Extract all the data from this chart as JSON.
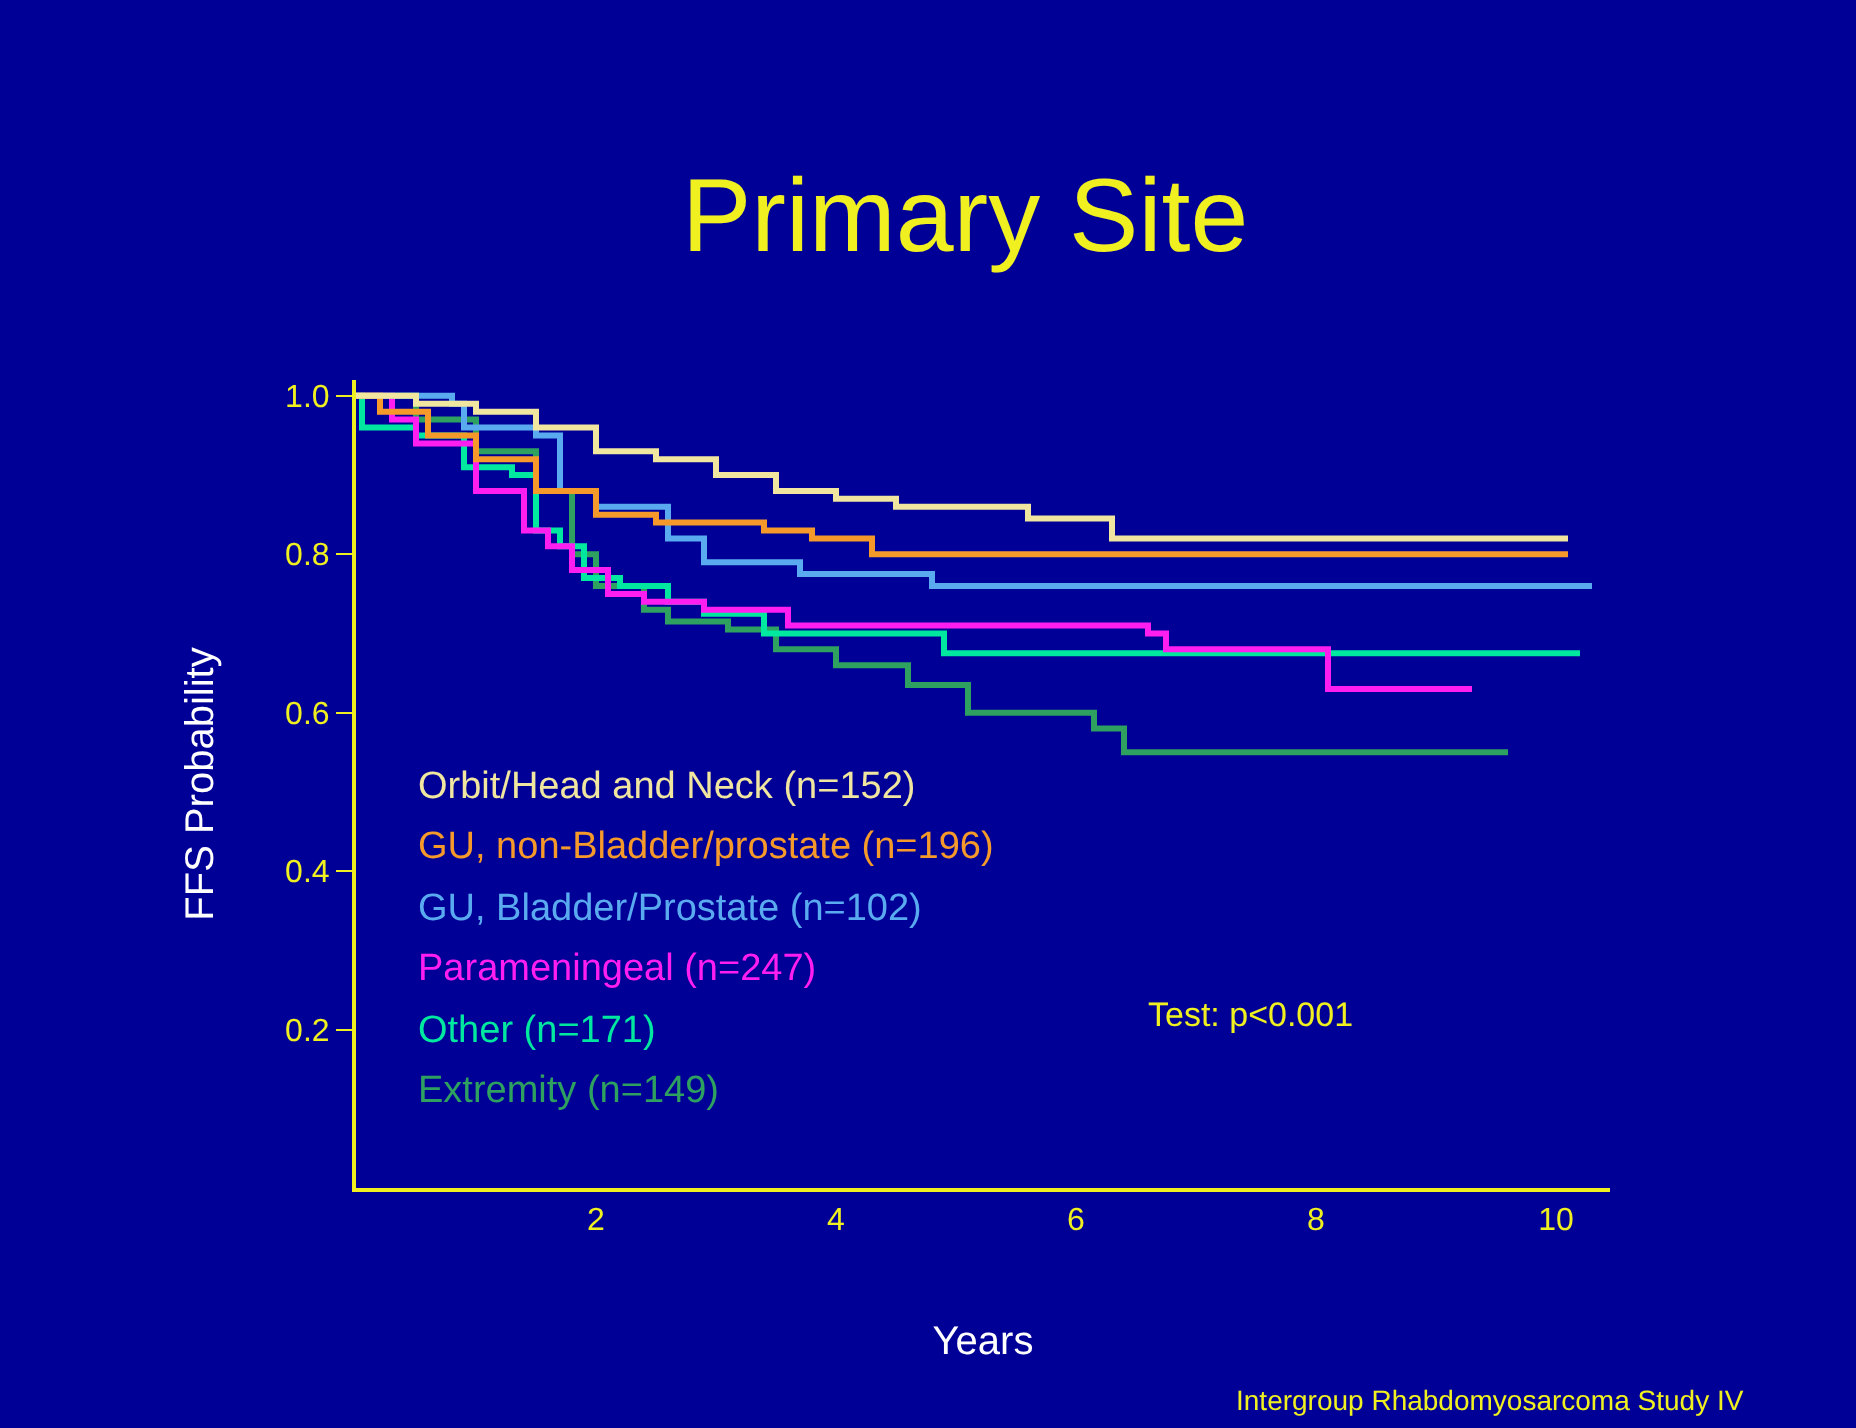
{
  "chart_data": {
    "type": "step",
    "title": "Primary Site",
    "xlabel": "Years",
    "ylabel": "FFS Probability",
    "xlim": [
      0,
      10.45
    ],
    "ylim": [
      0,
      1.02
    ],
    "xticks": [
      2,
      4,
      6,
      8,
      10
    ],
    "yticks": [
      0.2,
      0.4,
      0.6,
      0.8,
      {
        "value": 1,
        "label": "1.0"
      }
    ],
    "grid": false,
    "legend": "bottom left",
    "marker": "none",
    "line_style": "solid",
    "annotations": [
      "Test: p<0.001",
      "Intergroup Rhabdomyosarcoma Study IV"
    ],
    "series": [
      {
        "name": "Orbit/Head and Neck (n=152)",
        "color": "#f0e6a0",
        "x": [
          0,
          0.5,
          1.0,
          1.5,
          2.0,
          2.5,
          3.0,
          3.5,
          4.0,
          4.5,
          5.6,
          6.3,
          10.1
        ],
        "values": [
          1,
          0.99,
          0.98,
          0.96,
          0.93,
          0.92,
          0.9,
          0.88,
          0.87,
          0.86,
          0.845,
          0.82,
          0.82
        ]
      },
      {
        "name": "GU, non-Bladder/prostate (n=196)",
        "color": "#f59a2a",
        "x": [
          0,
          0.2,
          0.6,
          1.0,
          1.5,
          2.0,
          2.5,
          3.4,
          3.8,
          4.3,
          10.1
        ],
        "values": [
          1,
          0.98,
          0.95,
          0.92,
          0.88,
          0.85,
          0.84,
          0.83,
          0.82,
          0.8,
          0.8
        ]
      },
      {
        "name": "GU, Bladder/Prostate (n=102)",
        "color": "#5aaaf0",
        "x": [
          0,
          0.8,
          0.9,
          1.5,
          1.7,
          2.0,
          2.6,
          2.9,
          3.7,
          4.8,
          10.3
        ],
        "values": [
          1,
          0.99,
          0.96,
          0.95,
          0.88,
          0.86,
          0.82,
          0.79,
          0.775,
          0.76,
          0.76
        ]
      },
      {
        "name": "Parameningeal (n=247)",
        "color": "#ff1ef0",
        "x": [
          0,
          0.3,
          0.5,
          1.0,
          1.4,
          1.6,
          1.8,
          2.1,
          2.4,
          2.9,
          3.6,
          6.6,
          6.75,
          8.1,
          9.3
        ],
        "values": [
          1,
          0.97,
          0.94,
          0.88,
          0.83,
          0.81,
          0.78,
          0.75,
          0.74,
          0.73,
          0.71,
          0.7,
          0.68,
          0.63,
          0.63
        ]
      },
      {
        "name": "Other (n=171)",
        "color": "#00e8a0",
        "x": [
          0,
          0.05,
          0.5,
          0.9,
          1.3,
          1.5,
          1.7,
          1.9,
          2.2,
          2.6,
          2.9,
          3.4,
          4.9,
          10.2
        ],
        "values": [
          1,
          0.96,
          0.95,
          0.91,
          0.9,
          0.83,
          0.81,
          0.77,
          0.76,
          0.74,
          0.725,
          0.7,
          0.675,
          0.675
        ]
      },
      {
        "name": "Extremity (n=149)",
        "color": "#2ea060",
        "x": [
          0,
          0.5,
          1.0,
          1.5,
          1.8,
          2.0,
          2.4,
          2.6,
          3.1,
          3.5,
          4.0,
          4.6,
          5.1,
          6.15,
          6.4,
          9.6
        ],
        "values": [
          1,
          0.97,
          0.93,
          0.88,
          0.8,
          0.76,
          0.73,
          0.715,
          0.705,
          0.68,
          0.66,
          0.635,
          0.6,
          0.58,
          0.55,
          0.55
        ]
      }
    ]
  }
}
